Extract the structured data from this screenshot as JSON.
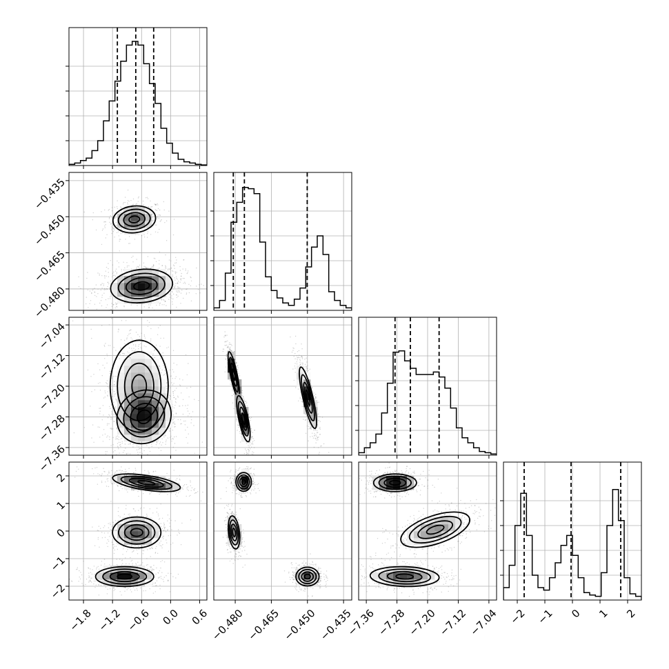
{
  "chart_data": {
    "type": "corner",
    "grid": true,
    "params": [
      {
        "ticks": [
          -1.8,
          -1.2,
          -0.6,
          0.0,
          0.6
        ],
        "tick_labels": [
          "−1.8",
          "−1.2",
          "−0.6",
          "0.0",
          "0.6"
        ],
        "range": [
          -2.1,
          0.75
        ],
        "quantiles": [
          -1.1,
          -0.72,
          -0.35
        ]
      },
      {
        "ticks": [
          -0.48,
          -0.465,
          -0.45,
          -0.435
        ],
        "tick_labels": [
          "−0.480",
          "−0.465",
          "−0.450",
          "−0.435"
        ],
        "range": [
          -0.4889,
          -0.4316
        ],
        "quantiles": [
          -0.4808,
          -0.4762,
          -0.4501
        ]
      },
      {
        "ticks": [
          -7.36,
          -7.28,
          -7.2,
          -7.12,
          -7.04
        ],
        "tick_labels": [
          "−7.36",
          "−7.28",
          "−7.20",
          "−7.12",
          "−7.04"
        ],
        "range": [
          -7.38,
          -7.02
        ],
        "quantiles": [
          -7.285,
          -7.245,
          -7.17
        ]
      },
      {
        "ticks": [
          -2,
          -1,
          0,
          1,
          2
        ],
        "tick_labels": [
          "−2",
          "−1",
          "0",
          "1",
          "2"
        ],
        "range": [
          -2.5,
          2.5
        ],
        "quantiles": [
          -1.75,
          -0.05,
          1.75
        ]
      }
    ],
    "diagonal_histograms": [
      [
        0.01,
        0.02,
        0.04,
        0.06,
        0.12,
        0.2,
        0.36,
        0.52,
        0.68,
        0.84,
        0.97,
        1.0,
        0.97,
        0.82,
        0.66,
        0.5,
        0.3,
        0.18,
        0.1,
        0.05,
        0.03,
        0.02,
        0.01,
        0.005
      ],
      [
        0.02,
        0.08,
        0.3,
        0.71,
        0.87,
        0.99,
        0.98,
        0.94,
        0.55,
        0.27,
        0.16,
        0.1,
        0.06,
        0.04,
        0.09,
        0.18,
        0.35,
        0.51,
        0.6,
        0.45,
        0.15,
        0.08,
        0.04,
        0.02
      ],
      [
        0.02,
        0.06,
        0.1,
        0.17,
        0.34,
        0.58,
        0.83,
        0.84,
        0.76,
        0.7,
        0.65,
        0.65,
        0.65,
        0.67,
        0.63,
        0.54,
        0.38,
        0.22,
        0.14,
        0.1,
        0.06,
        0.03,
        0.02,
        0.01
      ],
      [
        0.1,
        0.28,
        0.6,
        0.86,
        0.52,
        0.2,
        0.1,
        0.08,
        0.18,
        0.3,
        0.44,
        0.52,
        0.36,
        0.18,
        0.06,
        0.04,
        0.03,
        0.22,
        0.6,
        0.89,
        0.64,
        0.18,
        0.05,
        0.03
      ]
    ],
    "pair_modes": [
      {
        "x": 0,
        "y": 1,
        "modes": [
          {
            "mx": -0.75,
            "my": -0.4511,
            "sx": 0.22,
            "sy": 0.0028,
            "rho": 0.1,
            "w": 0.3
          },
          {
            "mx": -0.6,
            "my": -0.4788,
            "sx": 0.32,
            "sy": 0.0035,
            "rho": 0.15,
            "w": 0.7
          }
        ]
      },
      {
        "x": 0,
        "y": 2,
        "modes": [
          {
            "mx": -0.65,
            "my": -7.2,
            "sx": 0.3,
            "sy": 0.06,
            "rho": 0.0,
            "w": 0.45
          },
          {
            "mx": -0.55,
            "my": -7.28,
            "sx": 0.28,
            "sy": 0.035,
            "rho": 0.1,
            "w": 0.55
          }
        ]
      },
      {
        "x": 0,
        "y": 3,
        "modes": [
          {
            "mx": -0.5,
            "my": 1.75,
            "sx": 0.35,
            "sy": 0.16,
            "rho": -0.55,
            "w": 0.33
          },
          {
            "mx": -0.7,
            "my": -0.05,
            "sx": 0.25,
            "sy": 0.28,
            "rho": 0.0,
            "w": 0.33
          },
          {
            "mx": -0.95,
            "my": -1.65,
            "sx": 0.3,
            "sy": 0.18,
            "rho": 0.0,
            "w": 0.34
          }
        ]
      },
      {
        "x": 1,
        "y": 2,
        "modes": [
          {
            "mx": -0.4806,
            "my": -7.17,
            "sx": 0.0012,
            "sy": 0.03,
            "rho": -0.8,
            "w": 0.3
          },
          {
            "mx": -0.4766,
            "my": -7.285,
            "sx": 0.0014,
            "sy": 0.03,
            "rho": -0.7,
            "w": 0.3
          },
          {
            "mx": -0.4498,
            "my": -7.23,
            "sx": 0.0018,
            "sy": 0.04,
            "rho": -0.8,
            "w": 0.4
          }
        ]
      },
      {
        "x": 1,
        "y": 3,
        "modes": [
          {
            "mx": -0.4765,
            "my": 1.78,
            "sx": 0.0016,
            "sy": 0.17,
            "rho": 0.0,
            "w": 0.33
          },
          {
            "mx": -0.4805,
            "my": -0.05,
            "sx": 0.0012,
            "sy": 0.3,
            "rho": -0.3,
            "w": 0.33
          },
          {
            "mx": -0.45,
            "my": -1.65,
            "sx": 0.0024,
            "sy": 0.17,
            "rho": 0.0,
            "w": 0.34
          }
        ]
      },
      {
        "x": 2,
        "y": 3,
        "modes": [
          {
            "mx": -7.285,
            "my": 1.75,
            "sx": 0.028,
            "sy": 0.16,
            "rho": 0.0,
            "w": 0.33
          },
          {
            "mx": -7.18,
            "my": 0.05,
            "sx": 0.045,
            "sy": 0.32,
            "rho": 0.55,
            "w": 0.33
          },
          {
            "mx": -7.26,
            "my": -1.65,
            "sx": 0.045,
            "sy": 0.18,
            "rho": -0.1,
            "w": 0.34
          }
        ]
      }
    ]
  }
}
